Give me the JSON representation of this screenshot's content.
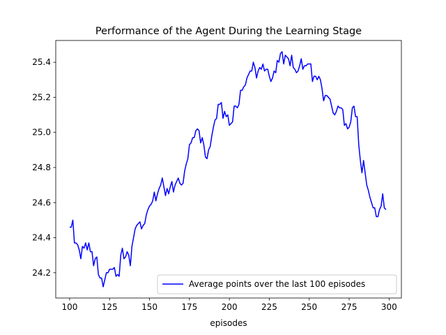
{
  "chart_data": {
    "type": "line",
    "title": "Performance of the Agent During the Learning Stage",
    "xlabel": "episodes",
    "ylabel": "",
    "xlim": [
      91.3,
      307.7
    ],
    "ylim": [
      24.056,
      25.524
    ],
    "xticks": [
      100,
      125,
      150,
      175,
      200,
      225,
      250,
      275,
      300
    ],
    "xtick_labels": [
      "100",
      "125",
      "150",
      "175",
      "200",
      "225",
      "250",
      "275",
      "300"
    ],
    "yticks": [
      24.2,
      24.4,
      24.6,
      24.8,
      25.0,
      25.2,
      25.4
    ],
    "ytick_labels": [
      "24.2",
      "24.4",
      "24.6",
      "24.8",
      "25.0",
      "25.2",
      "25.4"
    ],
    "grid": false,
    "legend_position": "lower right",
    "series": [
      {
        "name": "Average points over the last 100 episodes",
        "color": "#0000ff",
        "x": [
          100,
          101,
          102,
          103,
          104,
          105,
          106,
          107,
          108,
          109,
          110,
          111,
          112,
          113,
          114,
          115,
          116,
          117,
          118,
          119,
          120,
          121,
          122,
          123,
          124,
          125,
          126,
          127,
          128,
          129,
          130,
          131,
          132,
          133,
          134,
          135,
          136,
          137,
          138,
          139,
          140,
          141,
          142,
          143,
          144,
          145,
          146,
          147,
          148,
          149,
          150,
          151,
          152,
          153,
          154,
          155,
          156,
          157,
          158,
          159,
          160,
          161,
          162,
          163,
          164,
          165,
          166,
          167,
          168,
          169,
          170,
          171,
          172,
          173,
          174,
          175,
          176,
          177,
          178,
          179,
          180,
          181,
          182,
          183,
          184,
          185,
          186,
          187,
          188,
          189,
          190,
          191,
          192,
          193,
          194,
          195,
          196,
          197,
          198,
          199,
          200,
          201,
          202,
          203,
          204,
          205,
          206,
          207,
          208,
          209,
          210,
          211,
          212,
          213,
          214,
          215,
          216,
          217,
          218,
          219,
          220,
          221,
          222,
          223,
          224,
          225,
          226,
          227,
          228,
          229,
          230,
          231,
          232,
          233,
          234,
          235,
          236,
          237,
          238,
          239,
          240,
          241,
          242,
          243,
          244,
          245,
          246,
          247,
          248,
          249,
          250,
          251,
          252,
          253,
          254,
          255,
          256,
          257,
          258,
          259,
          260,
          261,
          262,
          263,
          264,
          265,
          266,
          267,
          268,
          269,
          270,
          271,
          272,
          273,
          274,
          275,
          276,
          277,
          278,
          279,
          280,
          281,
          282,
          283,
          284,
          285,
          286,
          287,
          288,
          289,
          290,
          291,
          292,
          293,
          294,
          295,
          296,
          297,
          298
        ],
        "values": [
          24.46,
          24.46,
          24.5,
          24.37,
          24.37,
          24.36,
          24.33,
          24.28,
          24.35,
          24.34,
          24.37,
          24.33,
          24.37,
          24.32,
          24.32,
          24.24,
          24.28,
          24.29,
          24.19,
          24.17,
          24.17,
          24.12,
          24.16,
          24.2,
          24.2,
          24.22,
          24.22,
          24.22,
          24.23,
          24.18,
          24.19,
          24.18,
          24.3,
          24.34,
          24.28,
          24.29,
          24.32,
          24.3,
          24.24,
          24.35,
          24.4,
          24.45,
          24.47,
          24.48,
          24.49,
          24.45,
          24.47,
          24.48,
          24.53,
          24.56,
          24.58,
          24.59,
          24.61,
          24.66,
          24.61,
          24.65,
          24.68,
          24.7,
          24.74,
          24.69,
          24.64,
          24.68,
          24.65,
          24.69,
          24.72,
          24.66,
          24.7,
          24.72,
          24.74,
          24.71,
          24.7,
          24.71,
          24.78,
          24.82,
          24.85,
          24.93,
          24.94,
          24.97,
          24.97,
          25.01,
          25.02,
          25.01,
          24.94,
          24.97,
          24.93,
          24.86,
          24.85,
          24.9,
          24.92,
          24.98,
          25.03,
          25.07,
          25.08,
          25.16,
          25.16,
          25.17,
          25.08,
          25.12,
          25.09,
          25.1,
          25.04,
          25.05,
          25.06,
          25.15,
          25.15,
          25.14,
          25.16,
          25.24,
          25.24,
          25.26,
          25.27,
          25.31,
          25.33,
          25.35,
          25.35,
          25.4,
          25.37,
          25.31,
          25.35,
          25.37,
          25.36,
          25.39,
          25.35,
          25.36,
          25.36,
          25.32,
          25.29,
          25.31,
          25.35,
          25.34,
          25.41,
          25.4,
          25.45,
          25.46,
          25.39,
          25.44,
          25.43,
          25.42,
          25.38,
          25.44,
          25.37,
          25.36,
          25.34,
          25.35,
          25.38,
          25.42,
          25.36,
          25.38,
          25.38,
          25.39,
          25.39,
          25.39,
          25.29,
          25.32,
          25.32,
          25.3,
          25.32,
          25.3,
          25.25,
          25.18,
          25.21,
          25.21,
          25.2,
          25.19,
          25.15,
          25.11,
          25.1,
          25.12,
          25.15,
          25.14,
          25.14,
          25.13,
          25.04,
          25.05,
          25.02,
          25.03,
          25.06,
          25.14,
          25.15,
          25.09,
          25.09,
          24.93,
          24.84,
          24.77,
          24.84,
          24.77,
          24.7,
          24.67,
          24.63,
          24.6,
          24.57,
          24.57,
          24.52,
          24.52,
          24.56,
          24.58,
          24.65,
          24.57,
          24.56
        ]
      }
    ]
  }
}
